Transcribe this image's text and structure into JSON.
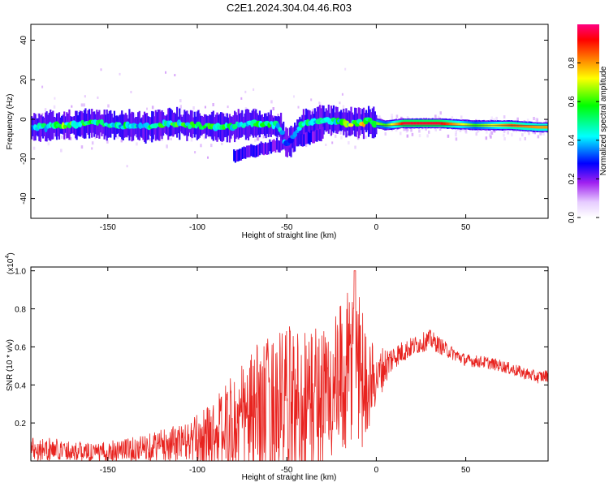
{
  "page": {
    "title": "C2E1.2024.304.04.46.R03"
  },
  "chart_data": [
    {
      "type": "heatmap",
      "xlabel": "Height of straight line (km)",
      "ylabel": "Frequency (Hz)",
      "xlim": [
        -193,
        96
      ],
      "ylim": [
        -50,
        48
      ],
      "xticks": [
        -150,
        -100,
        -50,
        0,
        50
      ],
      "yticks": [
        -40,
        -20,
        0,
        20,
        40
      ],
      "xtick_labels": [
        "-150",
        "-100",
        "-50",
        "0",
        "50"
      ],
      "ytick_labels": [
        "-40",
        "-20",
        "0",
        "20",
        "40"
      ],
      "colorbar": {
        "label": "Normalized spectral amplitude",
        "range": [
          0.0,
          1.0
        ],
        "ticks": [
          0.0,
          0.2,
          0.4,
          0.6,
          0.8
        ],
        "tick_labels": [
          "0.0",
          "0.2",
          "0.4",
          "0.6",
          "0.8"
        ],
        "colors": [
          "#ffffff",
          "#a020f0",
          "#0000ff",
          "#00ffff",
          "#00ff00",
          "#ffff00",
          "#ff8000",
          "#ff0000",
          "#ff0080"
        ]
      },
      "grid": false,
      "description_points": [
        {
          "x": -190,
          "y": -4,
          "v": 0.4
        },
        {
          "x": -175,
          "y": -3,
          "v": 0.6
        },
        {
          "x": -160,
          "y": -2,
          "v": 0.5
        },
        {
          "x": -145,
          "y": -3,
          "v": 0.5
        },
        {
          "x": -130,
          "y": -4,
          "v": 0.45
        },
        {
          "x": -115,
          "y": -2,
          "v": 0.55
        },
        {
          "x": -100,
          "y": -3,
          "v": 0.5
        },
        {
          "x": -85,
          "y": -4,
          "v": 0.55
        },
        {
          "x": -70,
          "y": -2,
          "v": 0.5
        },
        {
          "x": -55,
          "y": -3,
          "v": 0.5
        },
        {
          "x": -50,
          "y": -13,
          "v": 0.3
        },
        {
          "x": -40,
          "y": -2,
          "v": 0.5
        },
        {
          "x": -25,
          "y": 0,
          "v": 0.45
        },
        {
          "x": -15,
          "y": -2,
          "v": 0.6
        },
        {
          "x": -5,
          "y": -1,
          "v": 0.7
        },
        {
          "x": 5,
          "y": -3,
          "v": 0.6
        },
        {
          "x": 15,
          "y": -2,
          "v": 0.95
        },
        {
          "x": 35,
          "y": -2,
          "v": 0.95
        },
        {
          "x": 55,
          "y": -3,
          "v": 0.6
        },
        {
          "x": 75,
          "y": -3,
          "v": 0.85
        },
        {
          "x": 90,
          "y": -4,
          "v": 0.8
        }
      ]
    },
    {
      "type": "line",
      "xlabel": "Height of straight line (km)",
      "ylabel": "SNR (10 * v/v)",
      "yscale_label": "(x10",
      "yscale_exp": "4",
      "yscale_close": ")",
      "xlim": [
        -193,
        96
      ],
      "ylim": [
        0,
        1.02
      ],
      "xticks": [
        -150,
        -100,
        -50,
        0,
        50
      ],
      "yticks": [
        0.2,
        0.4,
        0.6,
        0.8,
        1.0
      ],
      "xtick_labels": [
        "-150",
        "-100",
        "-50",
        "0",
        "50"
      ],
      "ytick_labels": [
        "0.2",
        "0.4",
        "0.6",
        "0.8",
        "1.0"
      ],
      "color": "#e8231f",
      "grid": false,
      "series": [
        {
          "x": [
            -193,
            -185,
            -175,
            -165,
            -155,
            -145,
            -135,
            -125,
            -115,
            -105,
            -95,
            -85,
            -75,
            -65,
            -55,
            -45,
            -35,
            -25,
            -15,
            -12,
            -8,
            -5,
            0,
            5,
            10,
            20,
            30,
            40,
            50,
            60,
            70,
            80,
            90,
            96
          ],
          "y": [
            0.07,
            0.06,
            0.06,
            0.05,
            0.04,
            0.06,
            0.06,
            0.08,
            0.09,
            0.1,
            0.13,
            0.16,
            0.2,
            0.24,
            0.28,
            0.3,
            0.32,
            0.35,
            0.45,
            0.6,
            0.45,
            0.4,
            0.45,
            0.5,
            0.55,
            0.6,
            0.64,
            0.58,
            0.53,
            0.52,
            0.5,
            0.47,
            0.44,
            0.45
          ],
          "amplitude": [
            0.05,
            0.05,
            0.04,
            0.04,
            0.04,
            0.05,
            0.05,
            0.06,
            0.07,
            0.08,
            0.12,
            0.18,
            0.25,
            0.3,
            0.32,
            0.32,
            0.32,
            0.3,
            0.35,
            0.4,
            0.3,
            0.2,
            0.12,
            0.08,
            0.05,
            0.04,
            0.04,
            0.03,
            0.025,
            0.025,
            0.025,
            0.025,
            0.025,
            0.025
          ]
        }
      ]
    }
  ]
}
